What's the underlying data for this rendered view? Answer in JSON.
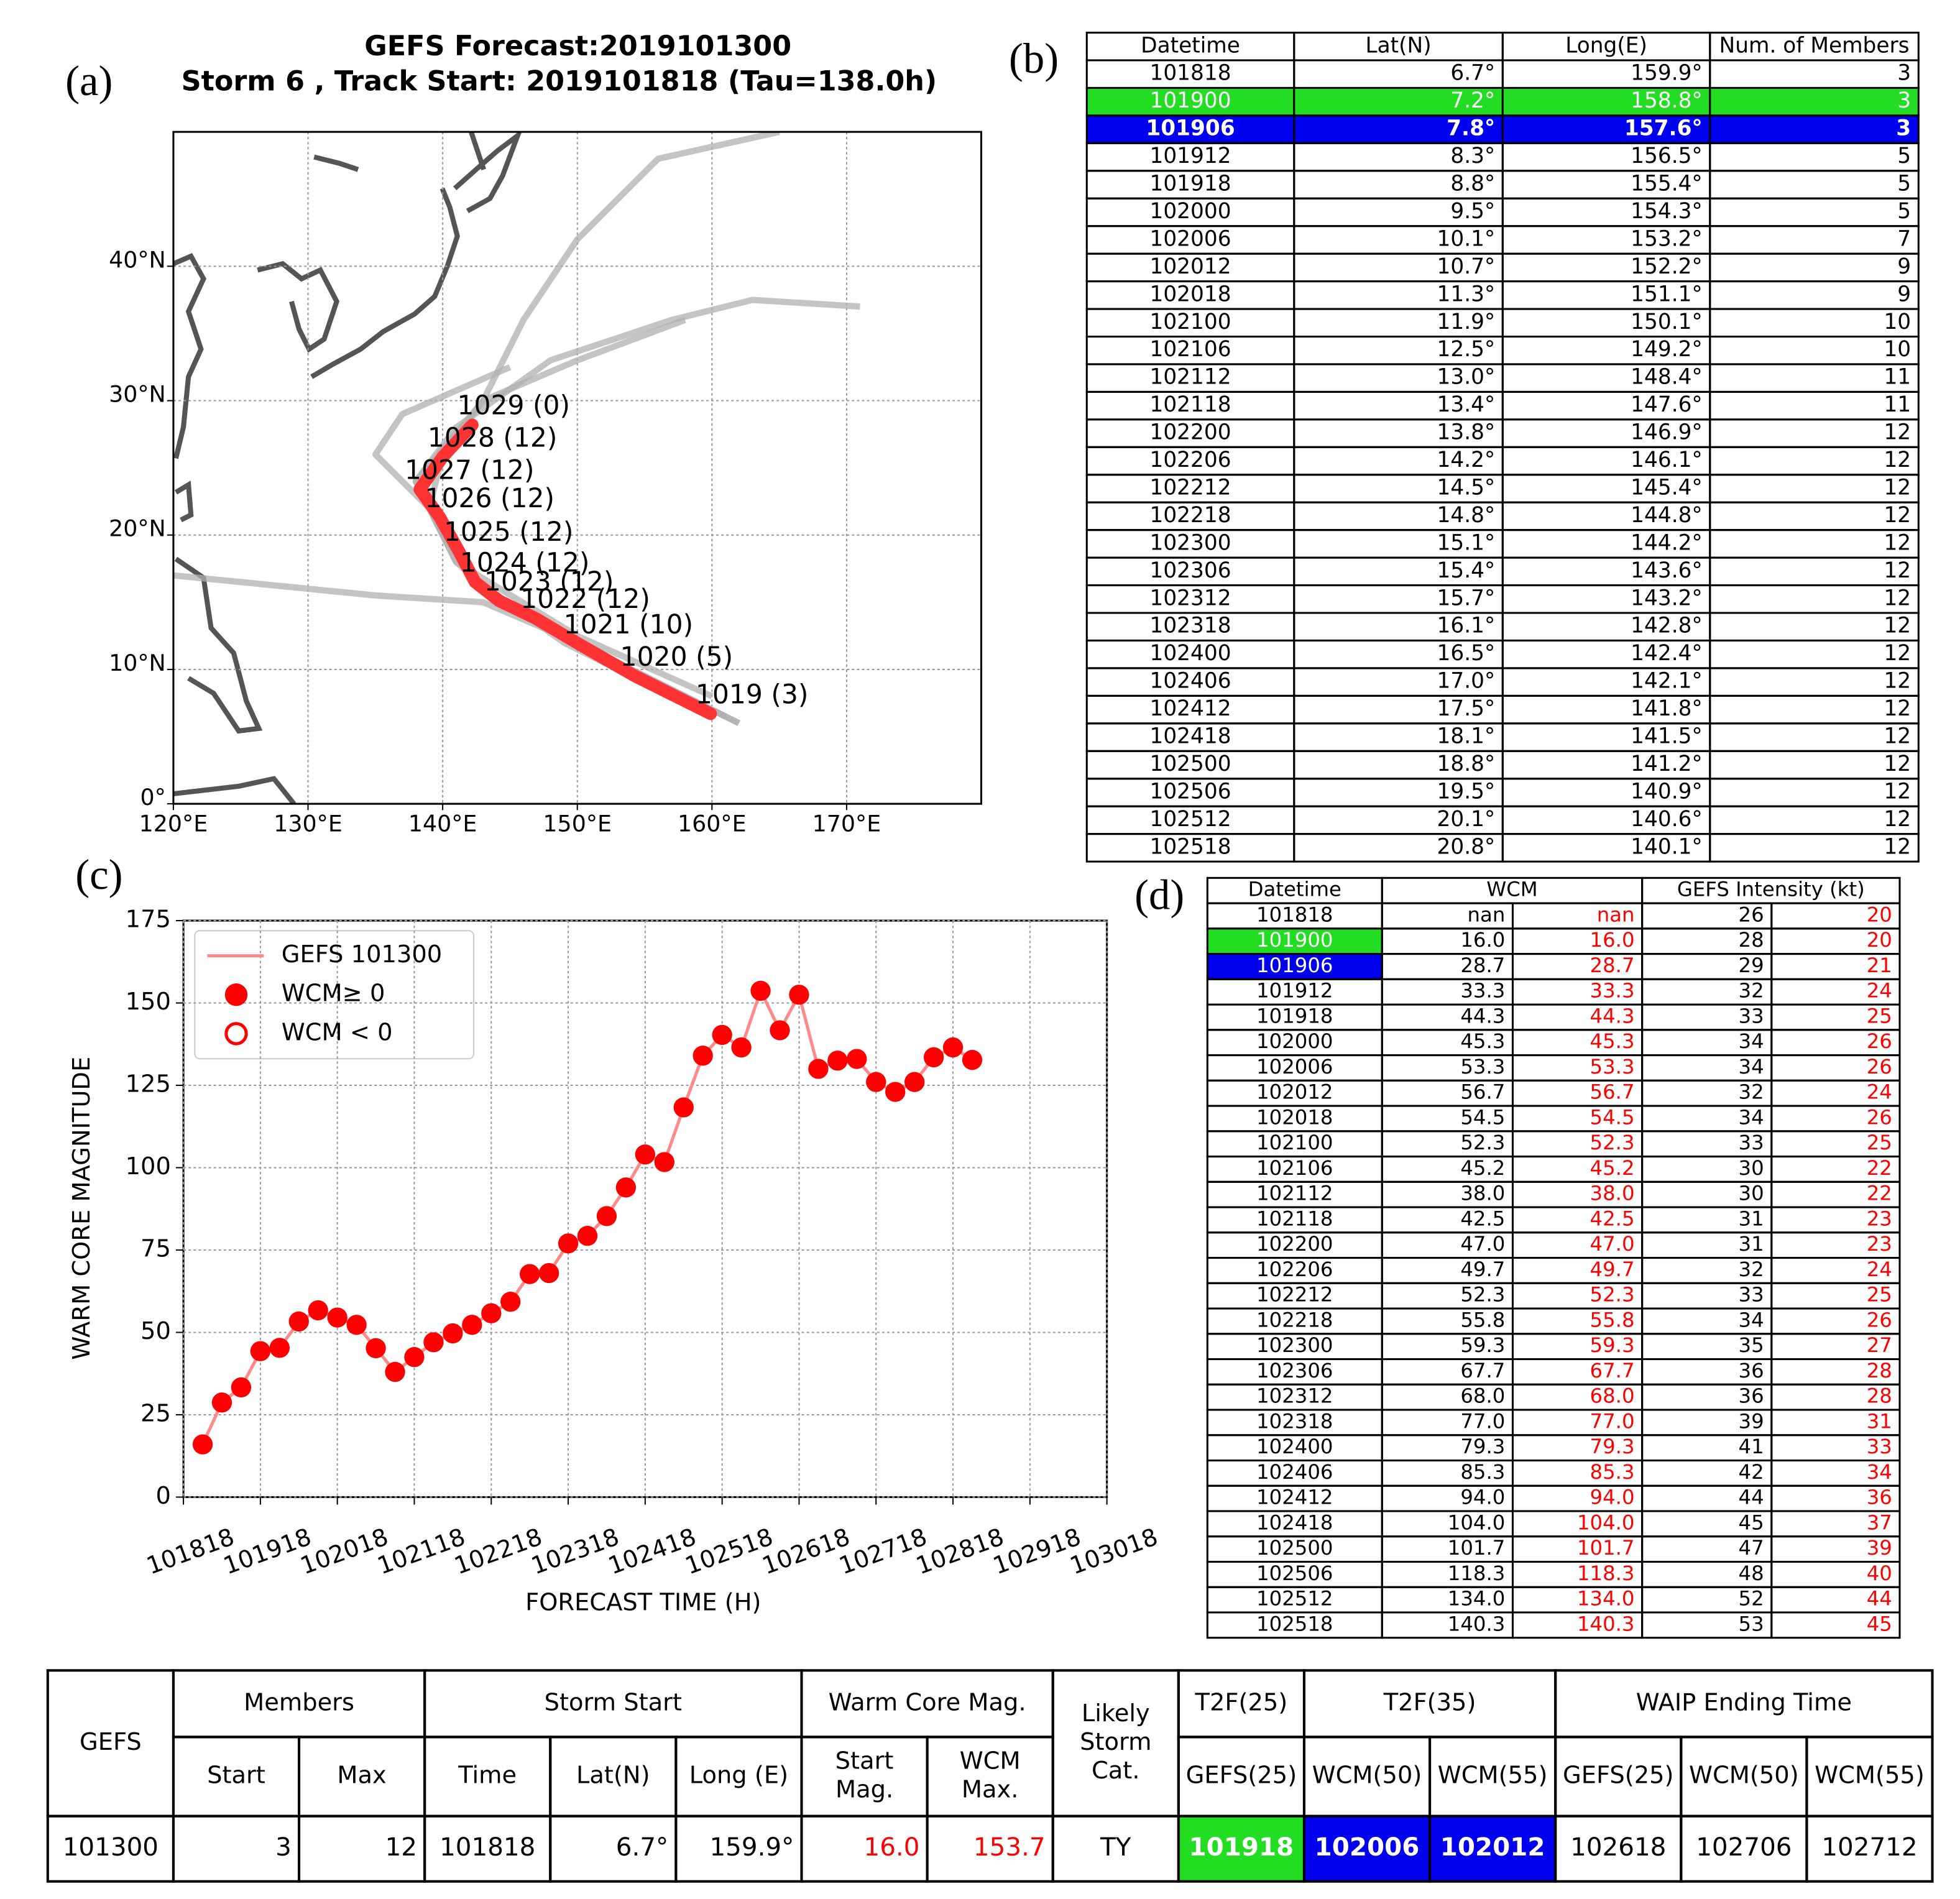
{
  "panel_labels": [
    "(a)",
    "(b)",
    "(c)",
    "(d)"
  ],
  "colors": {
    "red": "#ff0000",
    "green": "#22dd22",
    "blue": "#0000ee"
  },
  "chart_data": [
    {
      "type": "map",
      "title": "GEFS Forecast:2019101300",
      "subtitle": "Storm 6 , Track Start: 2019101818 (Tau=138.0h)",
      "xlim": [
        120,
        180
      ],
      "ylim": [
        0,
        50
      ],
      "xticks": [
        {
          "value": 120,
          "label": "120°E"
        },
        {
          "value": 130,
          "label": "130°E"
        },
        {
          "value": 140,
          "label": "140°E"
        },
        {
          "value": 150,
          "label": "150°E"
        },
        {
          "value": 160,
          "label": "160°E"
        },
        {
          "value": 170,
          "label": "170°E"
        }
      ],
      "yticks": [
        {
          "value": 0,
          "label": "0°"
        },
        {
          "value": 10,
          "label": "10°N"
        },
        {
          "value": 20,
          "label": "20°N"
        },
        {
          "value": 30,
          "label": "30°N"
        },
        {
          "value": 40,
          "label": "40°N"
        }
      ],
      "grid": true,
      "track": {
        "color": "#ff3333",
        "x": [
          159.9,
          154.3,
          150.1,
          146.9,
          144.2,
          142.4,
          141.2,
          139.8,
          138.3,
          140.0,
          142.2
        ],
        "y": [
          6.7,
          9.5,
          11.9,
          13.8,
          15.1,
          16.5,
          18.8,
          21.3,
          23.4,
          25.8,
          28.2
        ],
        "labels": [
          "1019 (3)",
          "1020 (5)",
          "1021 (10)",
          "1022 (12)",
          "1023 (12)",
          "1024 (12)",
          "1025 (12)",
          "1026 (12)",
          "1027 (12)",
          "1028 (12)",
          "1029 (0)"
        ]
      },
      "members": {
        "color": "#b0b0b0",
        "tracks": [
          {
            "x": [
              162,
              152,
              145,
              141,
              139,
              140,
              143,
              146,
              150,
              156,
              165
            ],
            "y": [
              6,
              11,
              14.5,
              18,
              22,
              26,
              30,
              36,
              42,
              48,
              50
            ]
          },
          {
            "x": [
              161,
              150,
              143,
              140,
              138,
              141,
              148,
              157,
              163,
              171
            ],
            "y": [
              6.5,
              12,
              16,
              20,
              24,
              28,
              33,
              36,
              37.5,
              37
            ]
          },
          {
            "x": [
              162,
              150,
              143,
              135,
              120
            ],
            "y": [
              6,
              12,
              15,
              15.5,
              17
            ]
          },
          {
            "x": [
              159,
              149,
              142,
              139,
              135,
              137,
              145
            ],
            "y": [
              7,
              12,
              17,
              22,
              26,
              29,
              32.5
            ]
          },
          {
            "x": [
              160,
              150,
              141,
              138,
              143,
              150,
              158
            ],
            "y": [
              8,
              12.5,
              18,
              24,
              30,
              33,
              36
            ]
          }
        ]
      }
    },
    {
      "type": "line",
      "xlabel": "FORECAST TIME (H)",
      "ylabel": "WARM CORE MAGNITUDE",
      "xlim": [
        0,
        288
      ],
      "ylim": [
        0,
        175
      ],
      "xticks": [
        {
          "value": 0,
          "label": "101818"
        },
        {
          "value": 24,
          "label": "101918"
        },
        {
          "value": 48,
          "label": "102018"
        },
        {
          "value": 72,
          "label": "102118"
        },
        {
          "value": 96,
          "label": "102218"
        },
        {
          "value": 120,
          "label": "102318"
        },
        {
          "value": 144,
          "label": "102418"
        },
        {
          "value": 168,
          "label": "102518"
        },
        {
          "value": 192,
          "label": "102618"
        },
        {
          "value": 216,
          "label": "102718"
        },
        {
          "value": 240,
          "label": "102818"
        },
        {
          "value": 264,
          "label": "102918"
        },
        {
          "value": 288,
          "label": "103018"
        }
      ],
      "yticks": [
        0,
        25,
        50,
        75,
        100,
        125,
        150,
        175
      ],
      "grid": true,
      "legend": "upper left",
      "series": [
        {
          "name": "GEFS 101300",
          "color": "#ff8888",
          "marker_color": "#ff0000",
          "x": [
            6,
            12,
            18,
            24,
            30,
            36,
            42,
            48,
            54,
            60,
            66,
            72,
            78,
            84,
            90,
            96,
            102,
            108,
            114,
            120,
            126,
            132,
            138,
            144,
            150,
            156,
            162,
            168,
            174,
            180,
            186,
            192,
            198,
            204,
            210,
            216,
            222,
            228,
            234,
            240,
            246
          ],
          "values": [
            16.0,
            28.7,
            33.3,
            44.3,
            45.3,
            53.3,
            56.7,
            54.5,
            52.3,
            45.2,
            38.0,
            42.5,
            47.0,
            49.7,
            52.3,
            55.8,
            59.3,
            67.7,
            68.0,
            77.0,
            79.3,
            85.3,
            94.0,
            104.0,
            101.7,
            118.3,
            134.0,
            140.3,
            136.5,
            153.7,
            141.7,
            152.5,
            130.0,
            132.5,
            133.0,
            126.0,
            123.0,
            126.0,
            133.5,
            136.5,
            132.7
          ]
        }
      ],
      "marker_legend": [
        "WCM≥ 0",
        "WCM < 0"
      ]
    }
  ],
  "table_b": {
    "header": [
      "Datetime",
      "Lat(N)",
      "Long(E)",
      "Num. of Members"
    ],
    "highlight": {
      "1": "#22dd22",
      "2": "#0000ee"
    },
    "rows": [
      [
        "101818",
        "6.7°",
        "159.9°",
        "3"
      ],
      [
        "101900",
        "7.2°",
        "158.8°",
        "3"
      ],
      [
        "101906",
        "7.8°",
        "157.6°",
        "3"
      ],
      [
        "101912",
        "8.3°",
        "156.5°",
        "5"
      ],
      [
        "101918",
        "8.8°",
        "155.4°",
        "5"
      ],
      [
        "102000",
        "9.5°",
        "154.3°",
        "5"
      ],
      [
        "102006",
        "10.1°",
        "153.2°",
        "7"
      ],
      [
        "102012",
        "10.7°",
        "152.2°",
        "9"
      ],
      [
        "102018",
        "11.3°",
        "151.1°",
        "9"
      ],
      [
        "102100",
        "11.9°",
        "150.1°",
        "10"
      ],
      [
        "102106",
        "12.5°",
        "149.2°",
        "10"
      ],
      [
        "102112",
        "13.0°",
        "148.4°",
        "11"
      ],
      [
        "102118",
        "13.4°",
        "147.6°",
        "11"
      ],
      [
        "102200",
        "13.8°",
        "146.9°",
        "12"
      ],
      [
        "102206",
        "14.2°",
        "146.1°",
        "12"
      ],
      [
        "102212",
        "14.5°",
        "145.4°",
        "12"
      ],
      [
        "102218",
        "14.8°",
        "144.8°",
        "12"
      ],
      [
        "102300",
        "15.1°",
        "144.2°",
        "12"
      ],
      [
        "102306",
        "15.4°",
        "143.6°",
        "12"
      ],
      [
        "102312",
        "15.7°",
        "143.2°",
        "12"
      ],
      [
        "102318",
        "16.1°",
        "142.8°",
        "12"
      ],
      [
        "102400",
        "16.5°",
        "142.4°",
        "12"
      ],
      [
        "102406",
        "17.0°",
        "142.1°",
        "12"
      ],
      [
        "102412",
        "17.5°",
        "141.8°",
        "12"
      ],
      [
        "102418",
        "18.1°",
        "141.5°",
        "12"
      ],
      [
        "102500",
        "18.8°",
        "141.2°",
        "12"
      ],
      [
        "102506",
        "19.5°",
        "140.9°",
        "12"
      ],
      [
        "102512",
        "20.1°",
        "140.6°",
        "12"
      ],
      [
        "102518",
        "20.8°",
        "140.1°",
        "12"
      ]
    ]
  },
  "table_d": {
    "header": [
      "Datetime",
      "WCM",
      "GEFS Intensity (kt)"
    ],
    "highlight": {
      "1": "#22dd22",
      "2": "#0000ee"
    },
    "rows": [
      [
        "101818",
        "nan",
        "nan",
        "26",
        "20"
      ],
      [
        "101900",
        "16.0",
        "16.0",
        "28",
        "20"
      ],
      [
        "101906",
        "28.7",
        "28.7",
        "29",
        "21"
      ],
      [
        "101912",
        "33.3",
        "33.3",
        "32",
        "24"
      ],
      [
        "101918",
        "44.3",
        "44.3",
        "33",
        "25"
      ],
      [
        "102000",
        "45.3",
        "45.3",
        "34",
        "26"
      ],
      [
        "102006",
        "53.3",
        "53.3",
        "34",
        "26"
      ],
      [
        "102012",
        "56.7",
        "56.7",
        "32",
        "24"
      ],
      [
        "102018",
        "54.5",
        "54.5",
        "34",
        "26"
      ],
      [
        "102100",
        "52.3",
        "52.3",
        "33",
        "25"
      ],
      [
        "102106",
        "45.2",
        "45.2",
        "30",
        "22"
      ],
      [
        "102112",
        "38.0",
        "38.0",
        "30",
        "22"
      ],
      [
        "102118",
        "42.5",
        "42.5",
        "31",
        "23"
      ],
      [
        "102200",
        "47.0",
        "47.0",
        "31",
        "23"
      ],
      [
        "102206",
        "49.7",
        "49.7",
        "32",
        "24"
      ],
      [
        "102212",
        "52.3",
        "52.3",
        "33",
        "25"
      ],
      [
        "102218",
        "55.8",
        "55.8",
        "34",
        "26"
      ],
      [
        "102300",
        "59.3",
        "59.3",
        "35",
        "27"
      ],
      [
        "102306",
        "67.7",
        "67.7",
        "36",
        "28"
      ],
      [
        "102312",
        "68.0",
        "68.0",
        "36",
        "28"
      ],
      [
        "102318",
        "77.0",
        "77.0",
        "39",
        "31"
      ],
      [
        "102400",
        "79.3",
        "79.3",
        "41",
        "33"
      ],
      [
        "102406",
        "85.3",
        "85.3",
        "42",
        "34"
      ],
      [
        "102412",
        "94.0",
        "94.0",
        "44",
        "36"
      ],
      [
        "102418",
        "104.0",
        "104.0",
        "45",
        "37"
      ],
      [
        "102500",
        "101.7",
        "101.7",
        "47",
        "39"
      ],
      [
        "102506",
        "118.3",
        "118.3",
        "48",
        "40"
      ],
      [
        "102512",
        "134.0",
        "134.0",
        "52",
        "44"
      ],
      [
        "102518",
        "140.3",
        "140.3",
        "53",
        "45"
      ]
    ]
  },
  "summary_table": {
    "header_top": [
      "GEFS",
      "Members",
      "Storm Start",
      "Warm Core Mag.",
      [
        "Likely",
        "Storm",
        "Cat."
      ],
      "T2F(25)",
      "T2F(35)",
      "WAIP Ending Time"
    ],
    "header_sub": [
      "Start",
      "Max",
      "Time",
      "Lat(N)",
      "Long (E)",
      [
        "Start",
        "Mag."
      ],
      [
        "WCM",
        "Max."
      ],
      "GEFS(25)",
      "WCM(50)",
      "WCM(55)",
      "GEFS(25)",
      "WCM(50)",
      "WCM(55)"
    ],
    "row": [
      "101300",
      "3",
      "12",
      "101818",
      "6.7°",
      "159.9°",
      "16.0",
      "153.7",
      "TY",
      "101918",
      "102006",
      "102012",
      "102618",
      "102706",
      "102712"
    ]
  }
}
